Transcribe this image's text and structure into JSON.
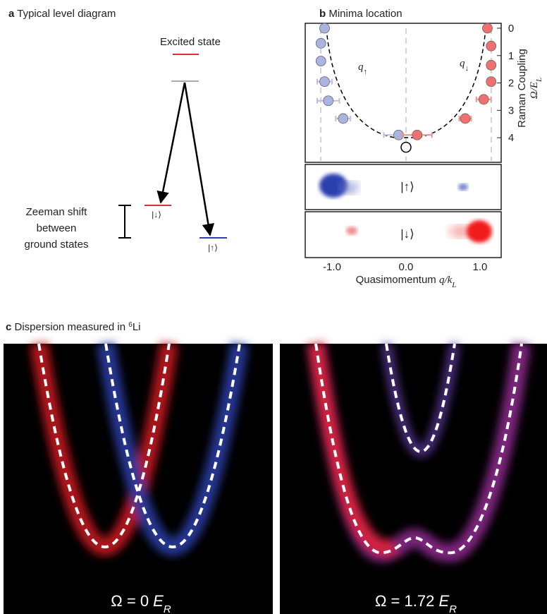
{
  "panel_a": {
    "label": "a",
    "title": "Typical level diagram",
    "excited": "Excited state",
    "zeeman": [
      "Zeeman shift",
      "between",
      "ground states"
    ],
    "down": "|↓⟩",
    "up": "|↑⟩"
  },
  "chart_data": {
    "type": "scatter",
    "label": "b",
    "title": "Minima location",
    "xlabel": {
      "text": "Quasimomentum",
      "var": "q/k",
      "sub": "L"
    },
    "ylabel": {
      "text": "Raman Coupling",
      "var": "Ω/E",
      "sub": "L"
    },
    "xlim": [
      -1.362,
      1.286
    ],
    "xticks": [
      {
        "value": -1,
        "label": "-1.0"
      },
      {
        "value": 0,
        "label": "0.0"
      },
      {
        "value": 1,
        "label": "1.0"
      }
    ],
    "ylim": [
      -0.18,
      4.9
    ],
    "yticks": [
      0,
      1,
      2,
      3,
      4
    ],
    "y_inverted": true,
    "annotations": [
      {
        "var": "q",
        "sub": "↑"
      },
      {
        "var": "q",
        "sub": "↓"
      }
    ],
    "series": [
      {
        "color": "#aab4e0",
        "err_color": "#b9c0e0",
        "x": [
          -1.1,
          -1.15,
          -1.15,
          -1.1,
          -1.05,
          -0.85,
          -0.1
        ],
        "xerr": [
          0,
          0.05,
          0.05,
          0.1,
          0.15,
          0.1,
          0.2
        ],
        "values": [
          0,
          0.55,
          1.2,
          1.95,
          2.65,
          3.3,
          3.9
        ]
      },
      {
        "color": "#f07070",
        "err_color": "#f09090",
        "x": [
          1.1,
          1.15,
          1.15,
          1.15,
          1.05,
          0.8,
          0.15
        ],
        "xerr": [
          0,
          0.03,
          0.03,
          0.05,
          0.1,
          0.08,
          0.2
        ],
        "values": [
          0,
          0.65,
          1.35,
          1.95,
          2.6,
          3.3,
          3.9
        ]
      },
      {
        "color": "#000000",
        "marker": "open",
        "x": [
          0
        ],
        "values": [
          4.35
        ]
      }
    ],
    "images": [
      {
        "label": "|↑⟩"
      },
      {
        "label": "|↓⟩"
      }
    ]
  },
  "panel_c": {
    "label": "c",
    "title": "Dispersion measured in ",
    "sup": "6",
    "element": "Li",
    "images": [
      {
        "text": "Ω = 0 ",
        "var": "E",
        "sub": "R"
      },
      {
        "text": "Ω = 1.72 ",
        "var": "E",
        "sub": "R"
      }
    ]
  }
}
